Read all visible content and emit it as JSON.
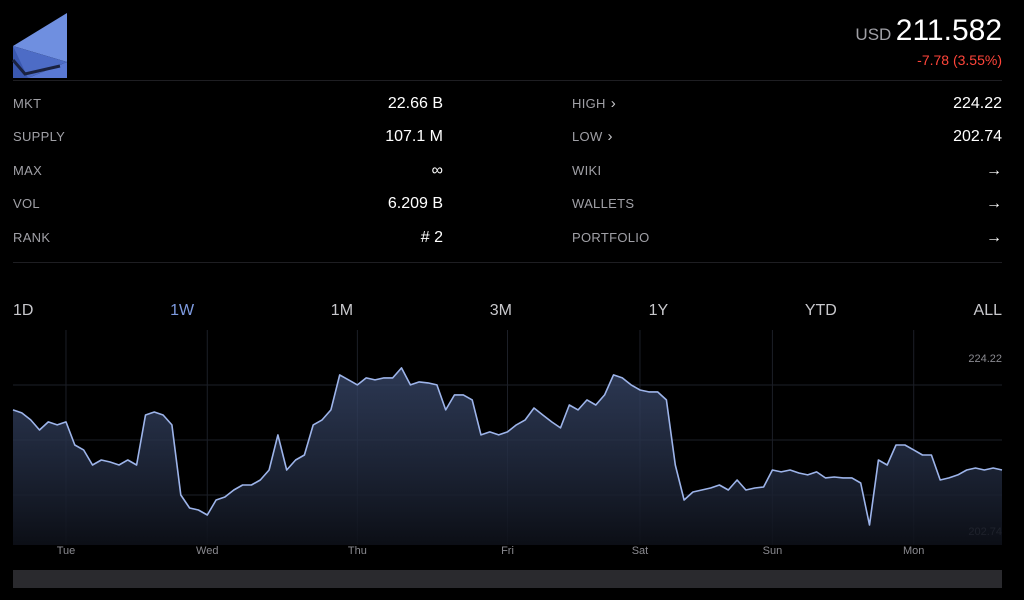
{
  "header": {
    "currency": "USD",
    "price": "211.582",
    "change": "-7.78 (3.55%)"
  },
  "stats_left": [
    {
      "label": "MKT",
      "value": "22.66 B"
    },
    {
      "label": "SUPPLY",
      "value": "107.1 M"
    },
    {
      "label": "MAX",
      "value": "∞"
    },
    {
      "label": "VOL",
      "value": "6.209 B"
    },
    {
      "label": "RANK",
      "value": "# 2"
    }
  ],
  "stats_right": [
    {
      "label": "HIGH",
      "value": "224.22"
    },
    {
      "label": "LOW",
      "value": "202.74"
    },
    {
      "label": "WIKI"
    },
    {
      "label": "WALLETS"
    },
    {
      "label": "PORTFOLIO"
    }
  ],
  "tabs": [
    "1D",
    "1W",
    "1M",
    "3M",
    "1Y",
    "YTD",
    "ALL"
  ],
  "active_tab": 1,
  "chart_data": {
    "type": "line",
    "color": "#9db4ea",
    "values": [
      218.47,
      218.06,
      217.1,
      215.73,
      216.83,
      216.42,
      216.83,
      213.68,
      213.0,
      210.94,
      211.63,
      211.35,
      210.94,
      211.63,
      210.94,
      217.78,
      218.19,
      217.78,
      216.42,
      206.84,
      205.06,
      204.79,
      204.1,
      206.16,
      206.57,
      207.52,
      208.21,
      208.21,
      208.89,
      210.26,
      215.05,
      210.26,
      211.63,
      212.31,
      216.42,
      217.1,
      218.47,
      223.26,
      222.57,
      221.89,
      222.85,
      222.57,
      222.85,
      222.85,
      224.22,
      221.89,
      222.3,
      222.16,
      221.89,
      218.47,
      220.52,
      220.52,
      219.84,
      215.05,
      215.46,
      215.05,
      215.46,
      216.42,
      217.1,
      218.74,
      217.78,
      216.83,
      216.01,
      219.15,
      218.47,
      219.84,
      219.15,
      220.52,
      223.26,
      222.85,
      221.89,
      221.2,
      220.93,
      220.93,
      219.84,
      210.94,
      206.16,
      207.25,
      207.52,
      207.8,
      208.21,
      207.52,
      208.89,
      207.52,
      207.8,
      207.93,
      210.26,
      209.99,
      210.26,
      209.85,
      209.58,
      209.99,
      209.17,
      209.3,
      209.17,
      209.17,
      208.48,
      202.74,
      211.63,
      210.94,
      213.68,
      213.68,
      213.0,
      212.31,
      212.31,
      208.89,
      209.17,
      209.58,
      210.26,
      210.53,
      210.26,
      210.53,
      210.26
    ],
    "xlim": [
      0,
      112
    ],
    "xticks": [
      {
        "value": 6,
        "label": "Tue"
      },
      {
        "value": 22,
        "label": "Wed"
      },
      {
        "value": 39,
        "label": "Thu"
      },
      {
        "value": 56,
        "label": "Fri"
      },
      {
        "value": 71,
        "label": "Sat"
      },
      {
        "value": 86,
        "label": "Sun"
      },
      {
        "value": 102,
        "label": "Mon"
      }
    ],
    "ylim": [
      200,
      229.4
    ],
    "yticks": [
      224.22,
      202.74
    ]
  }
}
